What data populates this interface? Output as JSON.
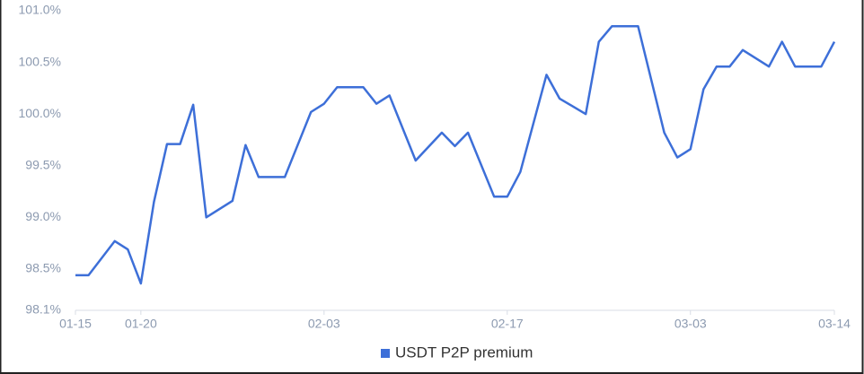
{
  "chart_data": {
    "type": "line",
    "x": [
      "01-15",
      "01-16",
      "01-18",
      "01-19",
      "01-20",
      "01-21",
      "01-22",
      "01-23",
      "01-24",
      "01-25",
      "01-27",
      "01-28",
      "01-29",
      "01-31",
      "02-02",
      "02-03",
      "02-04",
      "02-06",
      "02-07",
      "02-08",
      "02-10",
      "02-12",
      "02-13",
      "02-14",
      "02-16",
      "02-17",
      "02-18",
      "02-20",
      "02-21",
      "02-23",
      "02-24",
      "02-25",
      "02-27",
      "03-01",
      "03-02",
      "03-03",
      "03-04",
      "03-05",
      "03-06",
      "03-07",
      "03-09",
      "03-10",
      "03-11",
      "03-13",
      "03-14"
    ],
    "series": [
      {
        "name": "USDT P2P premium",
        "color": "#3d6fd8",
        "values": [
          98.44,
          98.44,
          98.77,
          98.69,
          98.36,
          99.15,
          99.71,
          99.71,
          100.09,
          99.0,
          99.16,
          99.7,
          99.39,
          99.39,
          100.02,
          100.1,
          100.26,
          100.26,
          100.1,
          100.18,
          99.55,
          99.82,
          99.69,
          99.82,
          99.2,
          99.2,
          99.44,
          100.38,
          100.15,
          100.0,
          100.7,
          100.85,
          100.85,
          99.82,
          99.58,
          99.66,
          100.24,
          100.46,
          100.46,
          100.62,
          100.46,
          100.7,
          100.46,
          100.46,
          100.7
        ]
      }
    ],
    "xticks": [
      "01-15",
      "01-20",
      "02-03",
      "02-17",
      "03-03",
      "03-14"
    ],
    "ylim": [
      98.1,
      101.0
    ],
    "yticks": [
      {
        "value": 98.1,
        "label": "98.1%"
      },
      {
        "value": 98.5,
        "label": "98.5%"
      },
      {
        "value": 99.0,
        "label": "99.0%"
      },
      {
        "value": 99.5,
        "label": "99.5%"
      },
      {
        "value": 100.0,
        "label": "100.0%"
      },
      {
        "value": 100.5,
        "label": "100.5%"
      },
      {
        "value": 101.0,
        "label": "101.0%"
      }
    ],
    "legend": "bottom"
  }
}
